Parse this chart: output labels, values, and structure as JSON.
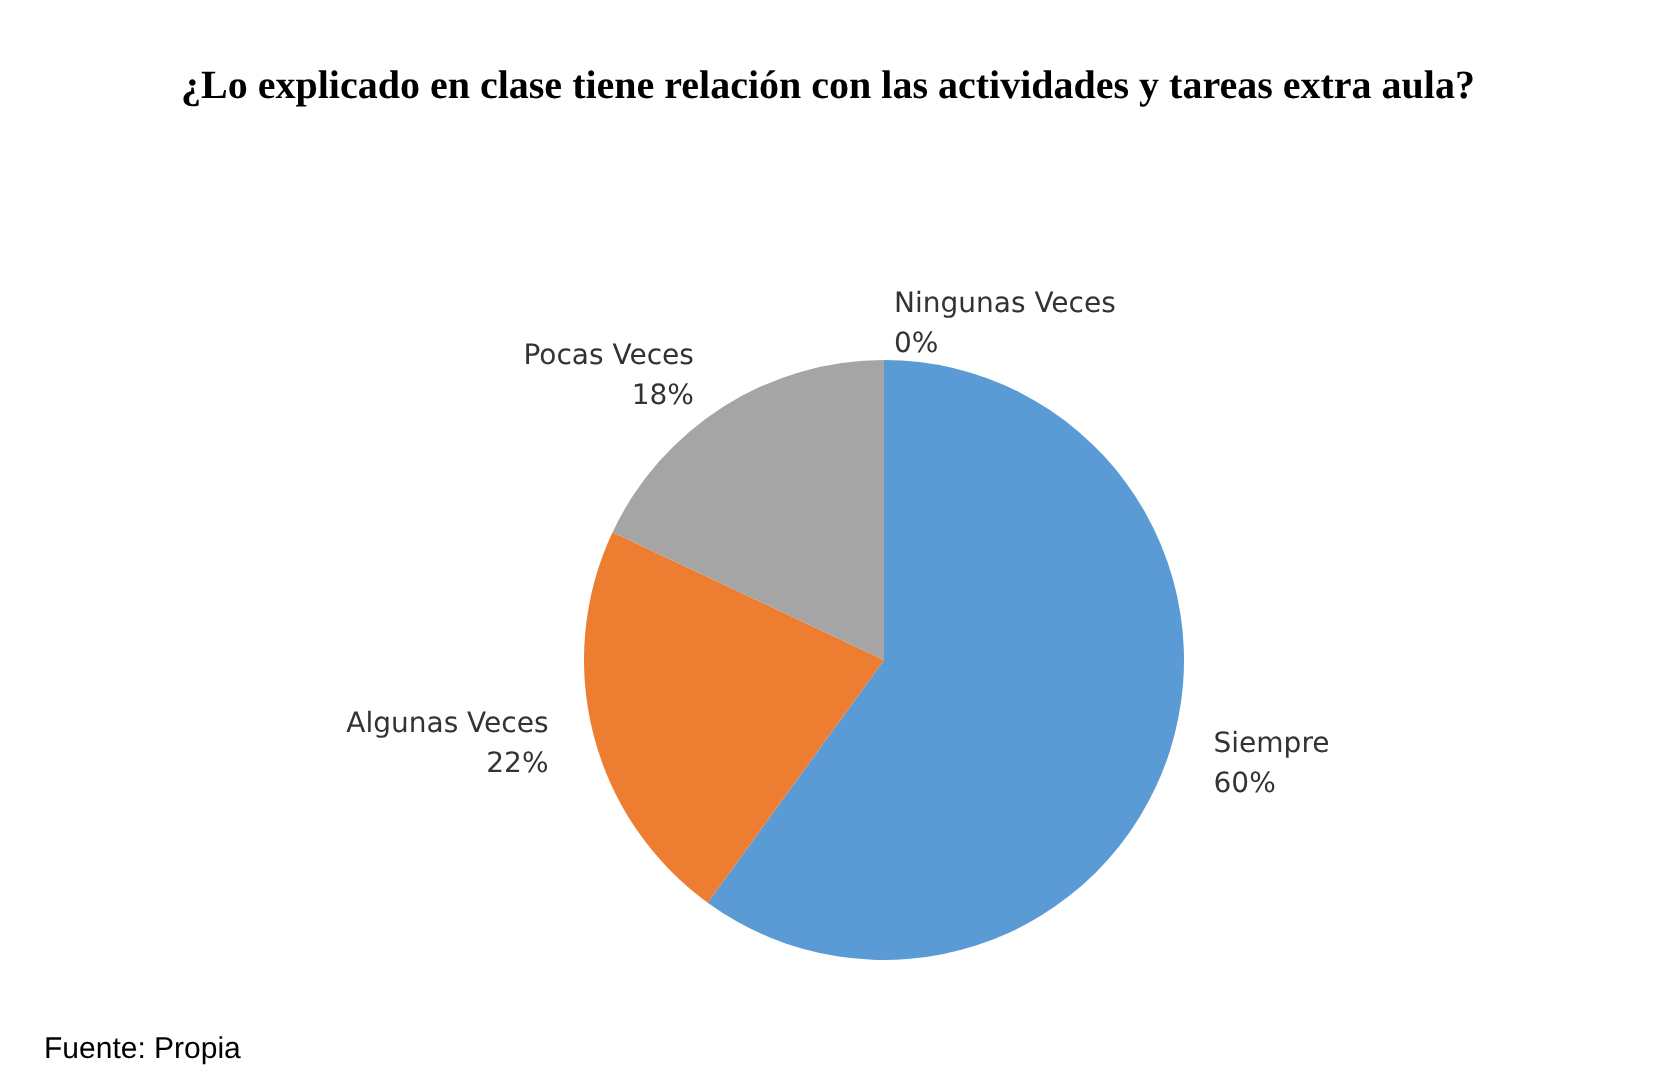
{
  "chart_data": {
    "type": "pie",
    "title": "¿Lo explicado en clase tiene relación con las actividades y tareas extra aula?",
    "categories": [
      "Siempre",
      "Algunas Veces",
      "Pocas Veces",
      "Ningunas Veces"
    ],
    "values": [
      60,
      22,
      18,
      0
    ],
    "value_labels": [
      "60%",
      "22%",
      "18%",
      "0%"
    ],
    "colors": [
      "#5b9bd5",
      "#ed7d31",
      "#a5a5a5",
      "#ffc000"
    ],
    "legend": false,
    "annotations": [
      "Fuente: Propia"
    ]
  }
}
